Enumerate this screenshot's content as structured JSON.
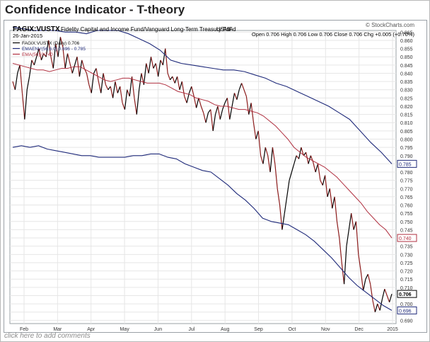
{
  "page": {
    "title": "Confidence Indicator - T-theory",
    "comment_link": "click here to add comments"
  },
  "header": {
    "symbol": "FAGIX:VUSTX",
    "description": "Fidelity Capital and Income Fund/Vanguard Long-Term Treasury Fund",
    "exchange": "USMF",
    "date": "26-Jan-2015",
    "source": "© StockCharts.com",
    "quote": "Open 0.706  High 0.706  Low 0.706  Close 0.706  Chg +0.005 (+0.70%)"
  },
  "legend": [
    {
      "label": "FAGIX:VUSTX (Daily) 0.706",
      "color": "#000000"
    },
    {
      "label": "EMAENV(56,6.0) 0.696 - 0.785",
      "color": "#1f2a7a"
    },
    {
      "label": "EMA(56) 0.740",
      "color": "#b03040"
    }
  ],
  "colors": {
    "price": "#000000",
    "price_down": "#8b1a1a",
    "envelope": "#1f2a7a",
    "ema": "#b03040"
  },
  "chart_data": {
    "type": "line",
    "x_labels": [
      "Feb",
      "Mar",
      "Apr",
      "May",
      "Jun",
      "Jul",
      "Aug",
      "Sep",
      "Oct",
      "Nov",
      "Dec",
      "2015"
    ],
    "y_ticks": [
      0.69,
      0.695,
      0.7,
      0.705,
      0.71,
      0.715,
      0.72,
      0.725,
      0.73,
      0.735,
      0.74,
      0.745,
      0.75,
      0.755,
      0.76,
      0.765,
      0.77,
      0.775,
      0.78,
      0.785,
      0.79,
      0.795,
      0.8,
      0.805,
      0.81,
      0.815,
      0.82,
      0.825,
      0.83,
      0.835,
      0.84,
      0.845,
      0.85,
      0.855,
      0.86,
      0.865
    ],
    "ylim": [
      0.688,
      0.866
    ],
    "grid": true,
    "y_axis_side": "right",
    "legend_position": "top-left",
    "series": [
      {
        "name": "FAGIX:VUSTX (Daily)",
        "y": [
          0.835,
          0.83,
          0.84,
          0.845,
          0.828,
          0.812,
          0.83,
          0.838,
          0.848,
          0.845,
          0.85,
          0.855,
          0.848,
          0.852,
          0.85,
          0.86,
          0.85,
          0.843,
          0.858,
          0.85,
          0.862,
          0.856,
          0.843,
          0.852,
          0.846,
          0.84,
          0.845,
          0.85,
          0.838,
          0.848,
          0.843,
          0.84,
          0.833,
          0.828,
          0.84,
          0.843,
          0.835,
          0.828,
          0.84,
          0.833,
          0.83,
          0.832,
          0.825,
          0.835,
          0.828,
          0.832,
          0.822,
          0.818,
          0.83,
          0.826,
          0.838,
          0.825,
          0.815,
          0.83,
          0.84,
          0.833,
          0.846,
          0.84,
          0.85,
          0.843,
          0.846,
          0.838,
          0.848,
          0.845,
          0.855,
          0.84,
          0.836,
          0.838,
          0.834,
          0.838,
          0.83,
          0.835,
          0.826,
          0.822,
          0.828,
          0.832,
          0.826,
          0.819,
          0.825,
          0.82,
          0.816,
          0.81,
          0.816,
          0.818,
          0.805,
          0.815,
          0.82,
          0.812,
          0.818,
          0.822,
          0.825,
          0.812,
          0.82,
          0.828,
          0.824,
          0.83,
          0.834,
          0.83,
          0.826,
          0.815,
          0.822,
          0.81,
          0.8,
          0.805,
          0.79,
          0.785,
          0.795,
          0.79,
          0.78,
          0.795,
          0.785,
          0.77,
          0.76,
          0.745,
          0.755,
          0.765,
          0.775,
          0.78,
          0.785,
          0.79,
          0.788,
          0.795,
          0.79,
          0.792,
          0.785,
          0.79,
          0.786,
          0.78,
          0.785,
          0.775,
          0.772,
          0.778,
          0.765,
          0.77,
          0.758,
          0.765,
          0.75,
          0.74,
          0.725,
          0.712,
          0.735,
          0.745,
          0.755,
          0.745,
          0.75,
          0.73,
          0.72,
          0.708,
          0.715,
          0.718,
          0.712,
          0.702,
          0.695,
          0.7,
          0.696,
          0.703,
          0.709,
          0.705,
          0.701,
          0.706
        ]
      },
      {
        "name": "EMA(56)",
        "y": [
          0.846,
          0.845,
          0.844,
          0.843,
          0.842,
          0.842,
          0.841,
          0.842,
          0.843,
          0.843,
          0.844,
          0.844,
          0.842,
          0.84,
          0.838,
          0.836,
          0.835,
          0.836,
          0.837,
          0.837,
          0.836,
          0.835,
          0.834,
          0.834,
          0.834,
          0.833,
          0.831,
          0.829,
          0.828,
          0.827,
          0.825,
          0.824,
          0.823,
          0.821,
          0.82,
          0.82,
          0.819,
          0.818,
          0.818,
          0.817,
          0.816,
          0.814,
          0.811,
          0.808,
          0.804,
          0.8,
          0.795,
          0.792,
          0.789,
          0.787,
          0.785,
          0.783,
          0.78,
          0.777,
          0.773,
          0.769,
          0.765,
          0.761,
          0.756,
          0.752,
          0.748,
          0.745,
          0.74
        ]
      },
      {
        "name": "EMAENV(56,6.0) upper",
        "y": [
          0.868,
          0.867,
          0.866,
          0.866,
          0.866,
          0.865,
          0.865,
          0.864,
          0.866,
          0.866,
          0.866,
          0.864,
          0.861,
          0.858,
          0.854,
          0.848,
          0.846,
          0.845,
          0.844,
          0.843,
          0.842,
          0.842,
          0.841,
          0.839,
          0.837,
          0.834,
          0.832,
          0.829,
          0.826,
          0.823,
          0.82,
          0.816,
          0.812,
          0.805,
          0.798,
          0.792,
          0.785
        ]
      },
      {
        "name": "EMAENV(56,6.0) lower",
        "y": [
          0.795,
          0.796,
          0.795,
          0.796,
          0.794,
          0.793,
          0.792,
          0.791,
          0.79,
          0.79,
          0.789,
          0.789,
          0.789,
          0.789,
          0.79,
          0.79,
          0.791,
          0.791,
          0.789,
          0.788,
          0.785,
          0.783,
          0.781,
          0.78,
          0.776,
          0.772,
          0.767,
          0.763,
          0.758,
          0.752,
          0.75,
          0.749,
          0.748,
          0.745,
          0.742,
          0.738,
          0.733,
          0.728,
          0.722,
          0.716,
          0.711,
          0.707,
          0.703,
          0.699,
          0.696
        ]
      }
    ],
    "value_tags": [
      {
        "value": 0.785,
        "label": "0.785",
        "color": "#1f2a7a"
      },
      {
        "value": 0.74,
        "label": "0.740",
        "color": "#b03040"
      },
      {
        "value": 0.706,
        "label": "0.706",
        "color": "#000000"
      },
      {
        "value": 0.696,
        "label": "0.696",
        "color": "#1f2a7a"
      }
    ]
  }
}
